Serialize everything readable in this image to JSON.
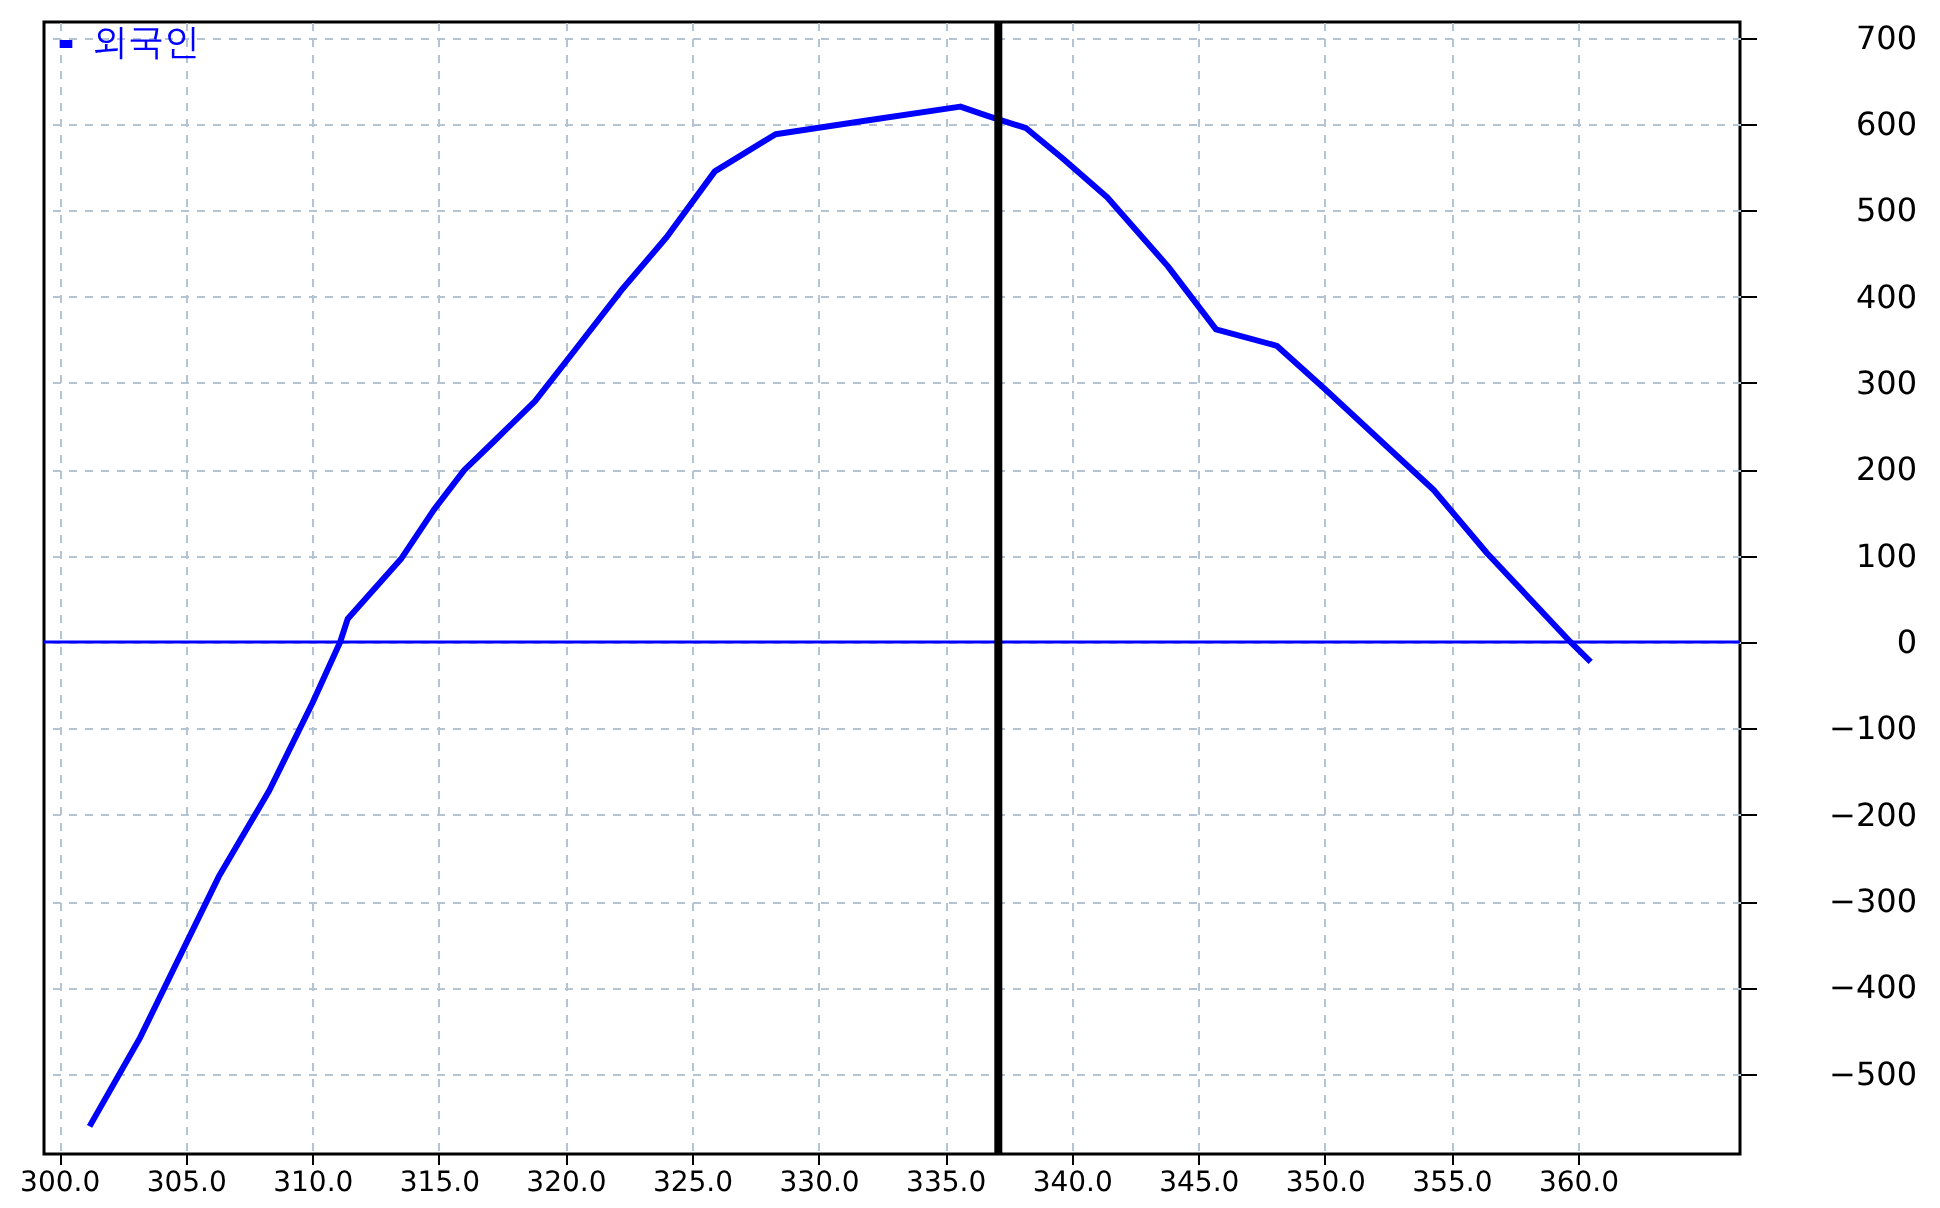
{
  "chart_data": {
    "type": "line",
    "x": [
      301.2,
      303.2,
      306.3,
      308.3,
      310.0,
      311.1,
      311.4,
      313.5,
      314.8,
      316.0,
      317.2,
      318.8,
      320.4,
      322.2,
      324.0,
      325.9,
      328.3,
      331.9,
      335.6,
      336.7,
      338.2,
      339.6,
      341.4,
      343.8,
      345.7,
      348.1,
      350.0,
      354.3,
      356.4,
      359.7,
      360.5
    ],
    "series": [
      {
        "name": "외국인",
        "color": "#0000ff",
        "values": [
          -561,
          -458,
          -272,
          -172,
          -71,
          0,
          27,
          96,
          153,
          199,
          233,
          279,
          339,
          407,
          469,
          545,
          588,
          604,
          620,
          609,
          595,
          561,
          515,
          435,
          362,
          343,
          293,
          176,
          103,
          0,
          -23
        ]
      }
    ],
    "xlim": [
      299.4,
      366.4
    ],
    "xticks": [
      {
        "value": 300,
        "label": "300.0"
      },
      {
        "value": 305,
        "label": "305.0"
      },
      {
        "value": 310,
        "label": "310.0"
      },
      {
        "value": 315,
        "label": "315.0"
      },
      {
        "value": 320,
        "label": "320.0"
      },
      {
        "value": 325,
        "label": "325.0"
      },
      {
        "value": 330,
        "label": "330.0"
      },
      {
        "value": 335,
        "label": "335.0"
      },
      {
        "value": 340,
        "label": "340.0"
      },
      {
        "value": 345,
        "label": "345.0"
      },
      {
        "value": 350,
        "label": "350.0"
      },
      {
        "value": 355,
        "label": "355.0"
      },
      {
        "value": 360,
        "label": "360.0"
      }
    ],
    "ylim": [
      -593,
      718
    ],
    "yticks": [
      -500,
      -400,
      -300,
      -200,
      -100,
      0,
      100,
      200,
      300,
      400,
      500,
      600,
      700
    ],
    "ref_lines": [
      {
        "axis": "y",
        "value": 0,
        "color": "#0000ff"
      },
      {
        "axis": "x",
        "value": 337.1,
        "color": "#000000"
      }
    ],
    "grid": true,
    "legend": "top left"
  }
}
